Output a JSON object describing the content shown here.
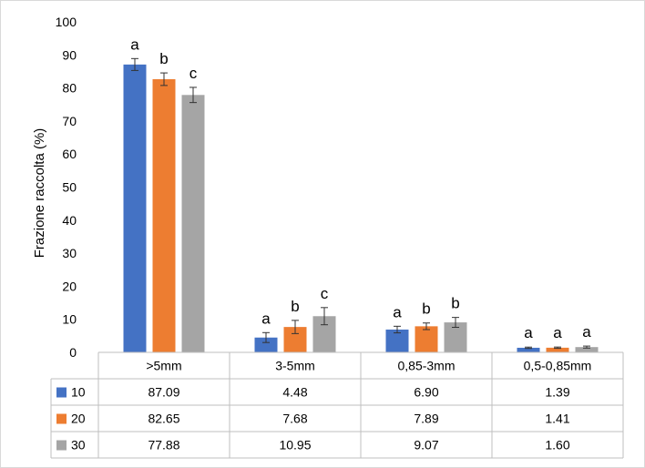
{
  "chart_data": {
    "type": "bar",
    "ylabel": "Frazione raccolta (%)",
    "ylim": [
      0,
      100
    ],
    "ytick_step": 10,
    "grid": false,
    "legend": "data-table",
    "categories": [
      ">5mm",
      "3-5mm",
      "0,85-3mm",
      "0,5-0,85mm"
    ],
    "series": [
      {
        "name": "10",
        "color": "#4472C4",
        "values": [
          87.09,
          4.48,
          6.9,
          1.39
        ],
        "value_labels": [
          "87.09",
          "4.48",
          "6.90",
          "1.39"
        ],
        "errors": [
          1.8,
          1.5,
          1.0,
          0.2
        ],
        "letters": [
          "a",
          "a",
          "a",
          "a"
        ]
      },
      {
        "name": "20",
        "color": "#ED7D31",
        "values": [
          82.65,
          7.68,
          7.89,
          1.41
        ],
        "value_labels": [
          "82.65",
          "7.68",
          "7.89",
          "1.41"
        ],
        "errors": [
          1.9,
          2.0,
          1.0,
          0.2
        ],
        "letters": [
          "b",
          "b",
          "b",
          "a"
        ]
      },
      {
        "name": "30",
        "color": "#A5A5A5",
        "values": [
          77.88,
          10.95,
          9.07,
          1.6
        ],
        "value_labels": [
          "77.88",
          "10.95",
          "9.07",
          "1.60"
        ],
        "errors": [
          2.3,
          2.6,
          1.5,
          0.3
        ],
        "letters": [
          "c",
          "c",
          "b",
          "a"
        ]
      }
    ]
  }
}
